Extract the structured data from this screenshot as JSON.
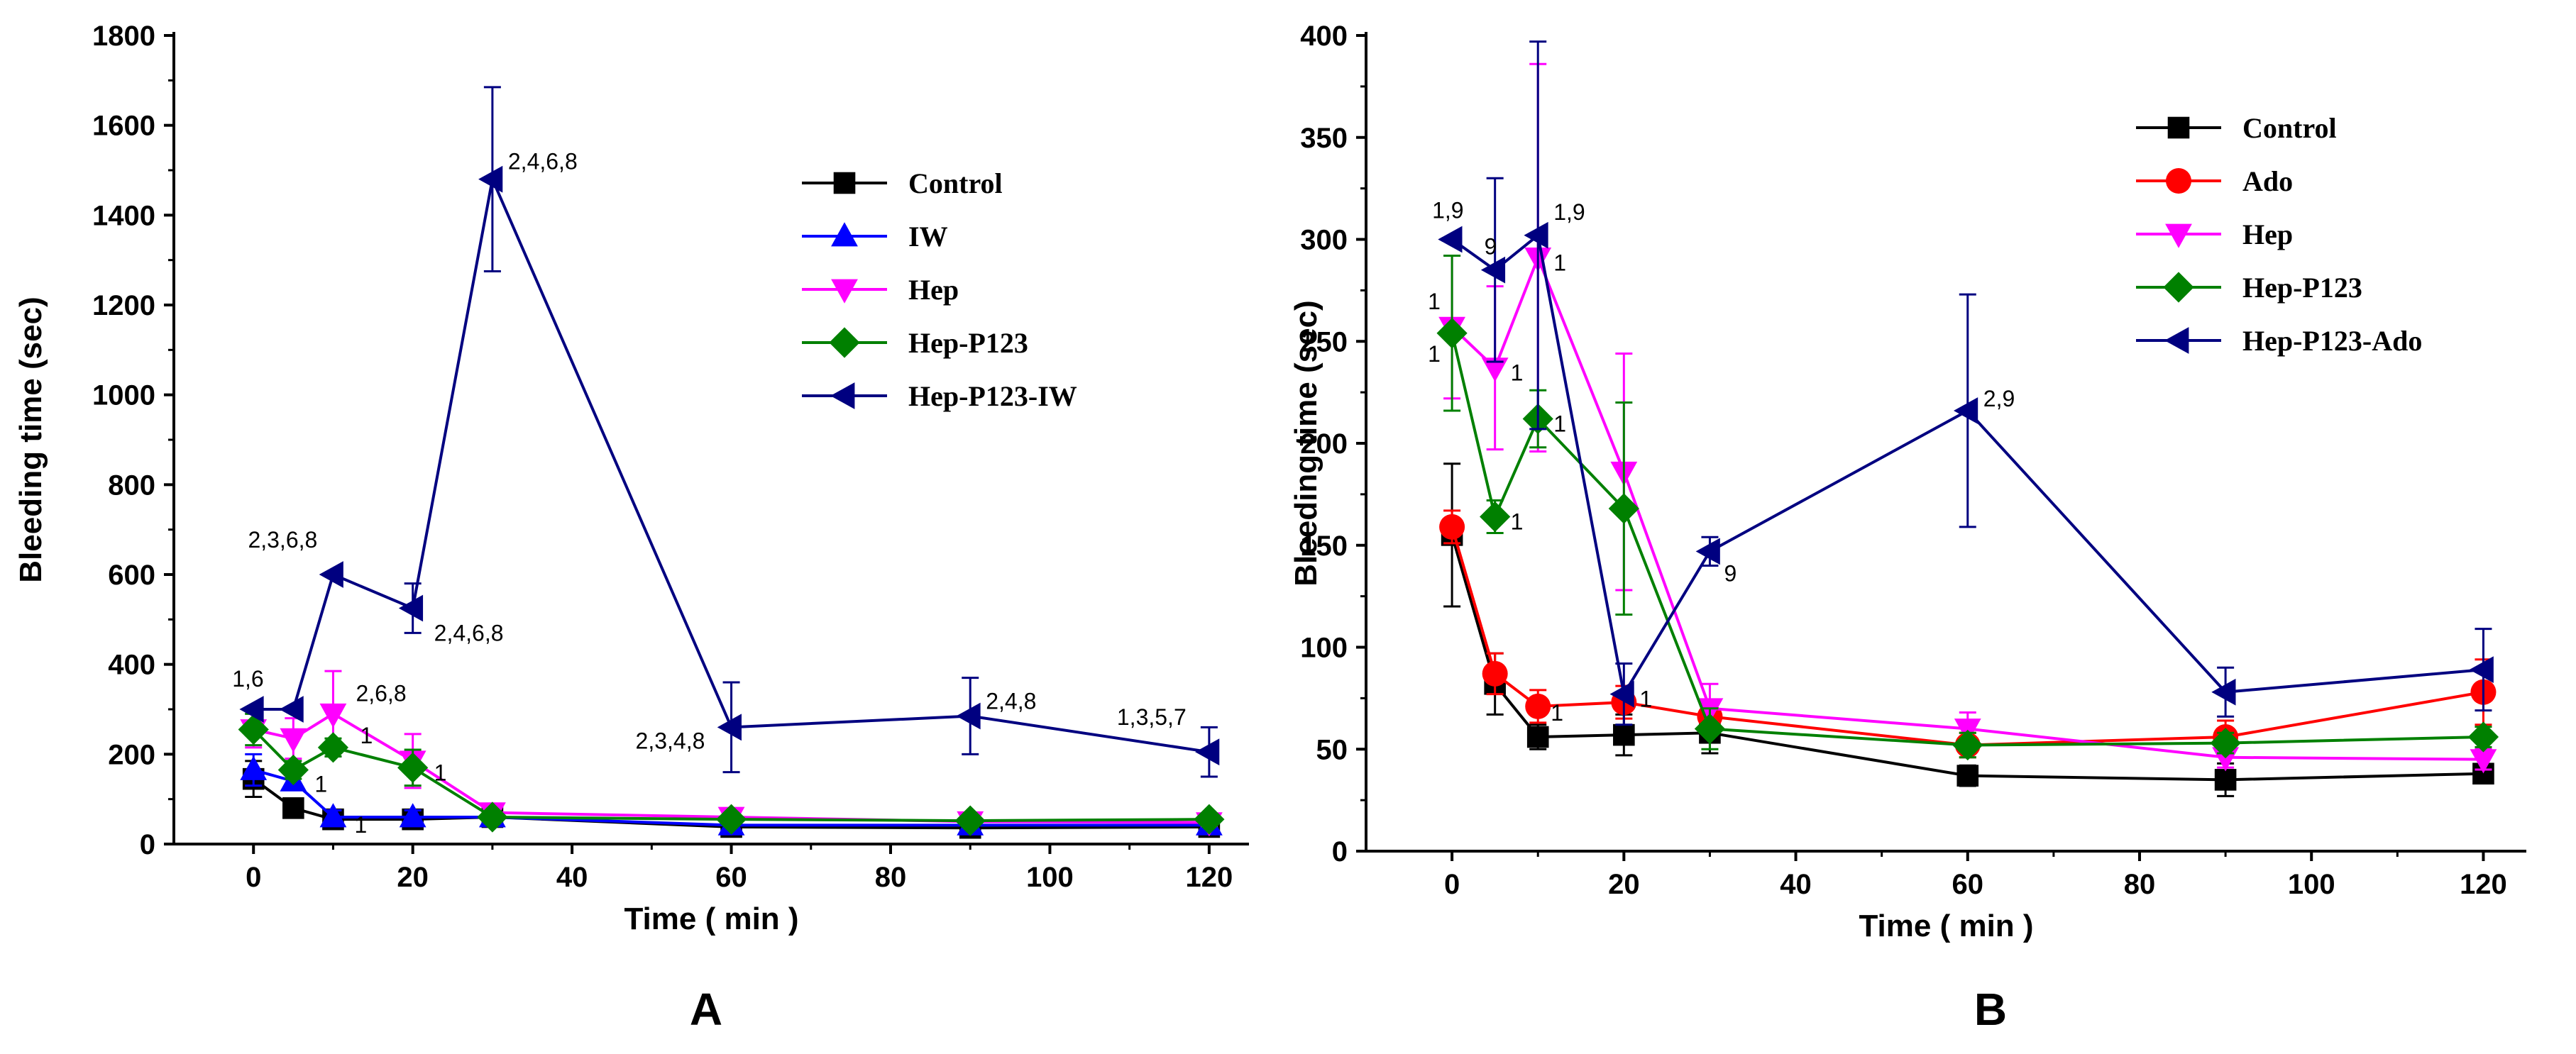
{
  "chart_data": [
    {
      "type": "line",
      "panel_label": "A",
      "xlabel": "Time ( min )",
      "ylabel": "Bleeding time (sec)",
      "xlim": [
        -10,
        125
      ],
      "ylim": [
        0,
        1800
      ],
      "xticks": [
        0,
        20,
        40,
        60,
        80,
        100,
        120
      ],
      "yticks": [
        0,
        200,
        400,
        600,
        800,
        1000,
        1200,
        1400,
        1600,
        1800
      ],
      "legend_position": "upper-right",
      "series": [
        {
          "name": "Control",
          "color": "#000000",
          "marker": "square",
          "x": [
            0,
            5,
            10,
            20,
            30,
            60,
            90,
            120
          ],
          "y": [
            145,
            80,
            55,
            55,
            60,
            38,
            36,
            38
          ],
          "err": [
            40,
            15,
            12,
            12,
            10,
            8,
            8,
            8
          ]
        },
        {
          "name": "IW",
          "color": "#0000ff",
          "marker": "triangle-up",
          "x": [
            0,
            5,
            10,
            20,
            30,
            60,
            90,
            120
          ],
          "y": [
            165,
            140,
            60,
            60,
            60,
            42,
            42,
            42
          ],
          "err": [
            35,
            20,
            15,
            15,
            10,
            8,
            8,
            8
          ]
        },
        {
          "name": "Hep",
          "color": "#ff00ff",
          "marker": "triangle-down",
          "x": [
            0,
            5,
            10,
            20,
            30,
            60,
            90,
            120
          ],
          "y": [
            255,
            235,
            290,
            185,
            70,
            60,
            50,
            48
          ],
          "err": [
            40,
            45,
            95,
            60,
            12,
            10,
            8,
            8
          ]
        },
        {
          "name": "Hep-P123",
          "color": "#008000",
          "marker": "diamond",
          "x": [
            0,
            5,
            10,
            20,
            30,
            60,
            90,
            120
          ],
          "y": [
            255,
            165,
            215,
            170,
            60,
            55,
            52,
            55
          ],
          "err": [
            35,
            20,
            20,
            40,
            12,
            10,
            8,
            8
          ]
        },
        {
          "name": "Hep-P123-IW",
          "color": "#000080",
          "marker": "triangle-left",
          "x": [
            0,
            5,
            10,
            20,
            30,
            60,
            90,
            120
          ],
          "y": [
            300,
            300,
            600,
            525,
            1480,
            260,
            285,
            205
          ],
          "err": [
            0,
            0,
            0,
            55,
            205,
            100,
            85,
            55
          ]
        }
      ],
      "annotations": [
        {
          "text": "1,6",
          "x": 0,
          "y": 300
        },
        {
          "text": "1",
          "x": 5,
          "y": 160
        },
        {
          "text": "2,6,8",
          "x": 10,
          "y": 290
        },
        {
          "text": "1",
          "x": 10,
          "y": 215
        },
        {
          "text": "1",
          "x": 10,
          "y": 60
        },
        {
          "text": "1",
          "x": 20,
          "y": 170
        },
        {
          "text": "2,3,6,8",
          "x": 10,
          "y": 600
        },
        {
          "text": "2,4,6,8",
          "x": 20,
          "y": 525
        },
        {
          "text": "2,4,6,8",
          "x": 30,
          "y": 1480
        },
        {
          "text": "2,3,4,8",
          "x": 60,
          "y": 260
        },
        {
          "text": "2,4,8",
          "x": 90,
          "y": 285
        },
        {
          "text": "1,3,5,7",
          "x": 120,
          "y": 205
        }
      ]
    },
    {
      "type": "line",
      "panel_label": "B",
      "xlabel": "Time ( min )",
      "ylabel": "Bleeding time (sec)",
      "xlim": [
        -10,
        125
      ],
      "ylim": [
        0,
        400
      ],
      "xticks": [
        0,
        20,
        40,
        60,
        80,
        100,
        120
      ],
      "yticks": [
        0,
        50,
        100,
        150,
        200,
        250,
        300,
        350,
        400
      ],
      "legend_position": "upper-right",
      "series": [
        {
          "name": "Control",
          "color": "#000000",
          "marker": "square",
          "x": [
            0,
            5,
            10,
            20,
            30,
            60,
            90,
            120
          ],
          "y": [
            155,
            82,
            56,
            57,
            58,
            37,
            35,
            38
          ],
          "err": [
            35,
            15,
            6,
            10,
            10,
            5,
            8,
            4
          ]
        },
        {
          "name": "Ado",
          "color": "#ff0000",
          "marker": "circle",
          "x": [
            0,
            5,
            10,
            20,
            30,
            60,
            90,
            120
          ],
          "y": [
            159,
            87,
            71,
            73,
            66,
            52,
            56,
            78
          ],
          "err": [
            8,
            10,
            8,
            8,
            8,
            6,
            8,
            16
          ]
        },
        {
          "name": "Hep",
          "color": "#ff00ff",
          "marker": "triangle-down",
          "x": [
            0,
            5,
            10,
            20,
            30,
            60,
            90,
            120
          ],
          "y": [
            257,
            237,
            291,
            186,
            70,
            60,
            46,
            45
          ],
          "err": [
            35,
            40,
            95,
            58,
            12,
            8,
            5,
            5
          ]
        },
        {
          "name": "Hep-P123",
          "color": "#008000",
          "marker": "diamond",
          "x": [
            0,
            5,
            10,
            20,
            30,
            60,
            90,
            120
          ],
          "y": [
            254,
            164,
            212,
            168,
            60,
            52,
            53,
            56
          ],
          "err": [
            38,
            8,
            14,
            52,
            10,
            6,
            5,
            5
          ]
        },
        {
          "name": "Hep-P123-Ado",
          "color": "#000080",
          "marker": "triangle-left",
          "x": [
            0,
            5,
            10,
            20,
            30,
            60,
            90,
            120
          ],
          "y": [
            300,
            285,
            302,
            77,
            147,
            216,
            78,
            89
          ],
          "err": [
            0,
            45,
            95,
            15,
            7,
            57,
            12,
            20
          ]
        }
      ],
      "annotations": [
        {
          "text": "1,9",
          "x": 0,
          "y": 300
        },
        {
          "text": "9",
          "x": 5,
          "y": 285
        },
        {
          "text": "1,9",
          "x": 10,
          "y": 302
        },
        {
          "text": "1",
          "x": 0,
          "y": 257
        },
        {
          "text": "1",
          "x": 0,
          "y": 254
        },
        {
          "text": "1",
          "x": 5,
          "y": 237
        },
        {
          "text": "1",
          "x": 5,
          "y": 164
        },
        {
          "text": "1",
          "x": 10,
          "y": 291
        },
        {
          "text": "1",
          "x": 10,
          "y": 212
        },
        {
          "text": "1",
          "x": 10,
          "y": 71
        },
        {
          "text": "1",
          "x": 20,
          "y": 77
        },
        {
          "text": "9",
          "x": 30,
          "y": 147
        },
        {
          "text": "2,9",
          "x": 60,
          "y": 216
        }
      ]
    }
  ]
}
